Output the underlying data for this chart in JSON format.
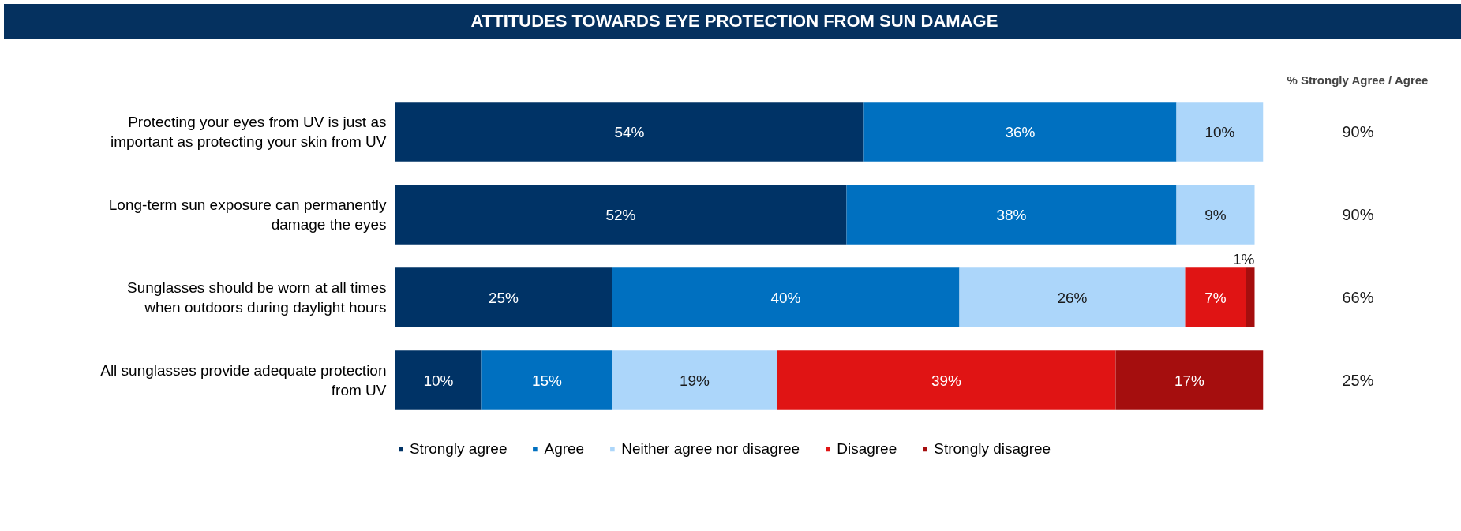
{
  "chart_data": {
    "type": "bar",
    "orientation": "horizontal",
    "stacked": true,
    "title": "ATTITUDES TOWARDS EYE PROTECTION FROM SUN DAMAGE",
    "categories": [
      "Protecting your eyes from UV is just as important as protecting your skin from UV",
      "Long-term sun exposure can permanently damage the eyes",
      "Sunglasses should be worn at all times when outdoors during daylight hours",
      "All sunglasses provide adequate protection from UV"
    ],
    "series": [
      {
        "name": "Strongly agree",
        "color": "#003366",
        "values": [
          54,
          52,
          25,
          10
        ],
        "value_labels": [
          "54%",
          "52%",
          "25%",
          "10%"
        ]
      },
      {
        "name": "Agree",
        "color": "#0070c0",
        "values": [
          36,
          38,
          40,
          15
        ],
        "value_labels": [
          "36%",
          "38%",
          "40%",
          "15%"
        ]
      },
      {
        "name": "Neither agree nor disagree",
        "color": "#acd6fa",
        "values": [
          10,
          9,
          26,
          19
        ],
        "value_labels": [
          "10%",
          "9%",
          "26%",
          "19%"
        ]
      },
      {
        "name": "Disagree",
        "color": "#e01414",
        "values": [
          null,
          null,
          7,
          39
        ],
        "value_labels": [
          null,
          null,
          "7%",
          "39%"
        ]
      },
      {
        "name": "Strongly disagree",
        "color": "#a50e0e",
        "values": [
          null,
          null,
          1,
          17
        ],
        "value_labels": [
          null,
          null,
          "1%",
          "17%"
        ]
      }
    ],
    "xlim": [
      0,
      100
    ],
    "tick_labels": "y",
    "grid": false,
    "legend": "bottom",
    "annotations": [
      "% Strongly Agree / Agree",
      "90%",
      "90%",
      "66%",
      "25%"
    ]
  }
}
